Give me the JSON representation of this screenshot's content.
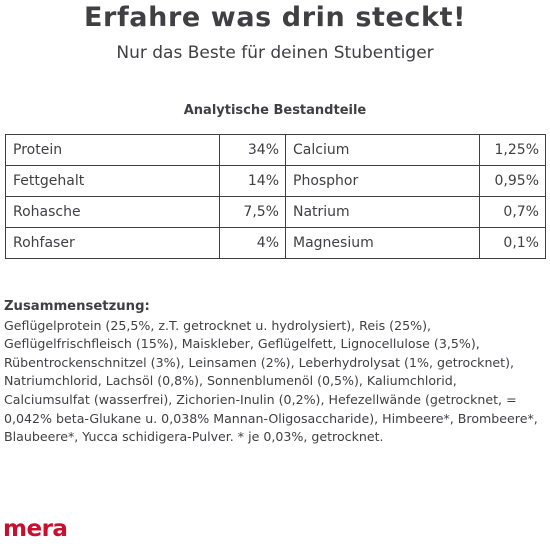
{
  "header": {
    "title": "Erfahre was drin steckt!",
    "subtitle": "Nur das Beste für deinen Stubentiger"
  },
  "analysis": {
    "title": "Analytische Bestandteile",
    "rows": [
      {
        "name1": "Protein",
        "value1": "34%",
        "name2": "Calcium",
        "value2": "1,25%"
      },
      {
        "name1": "Fettgehalt",
        "value1": "14%",
        "name2": "Phosphor",
        "value2": "0,95%"
      },
      {
        "name1": "Rohasche",
        "value1": "7,5%",
        "name2": "Natrium",
        "value2": "0,7%"
      },
      {
        "name1": "Rohfaser",
        "value1": "4%",
        "name2": "Magnesium",
        "value2": "0,1%"
      }
    ]
  },
  "composition": {
    "title": "Zusammensetzung:",
    "text": "Geflügelprotein (25,5%, z.T. getrocknet u. hydrolysiert), Reis (25%), Geflügelfrischfleisch (15%), Maiskleber, Geflügelfett, Lignocellulose (3,5%), Rübentrockenschnitzel (3%), Leinsamen (2%), Leberhydrolysat (1%, getrocknet), Natriumchlorid, Lachsöl (0,8%), Sonnenblumenöl (0,5%), Kaliumchlorid, Calciumsulfat (wasserfrei), Zichorien-Inulin (0,2%), Hefezellwände (getrocknet, = 0,042% beta-Glukane u. 0,038% Mannan-Oligosaccharide),  Himbeere*, Brombeere*, Blaubeere*, Yucca schidigera-Pulver. * je 0,03%, getrocknet."
  },
  "brand": {
    "logo_text": "mera",
    "color": "#c8102e"
  }
}
